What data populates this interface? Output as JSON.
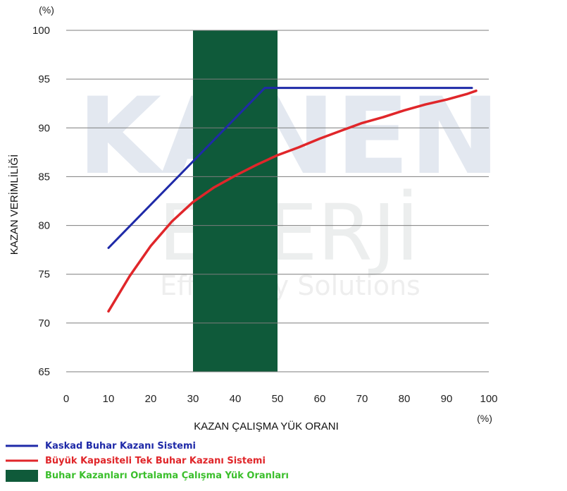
{
  "chart_data": {
    "type": "line",
    "y_unit": "(%)",
    "x_unit": "(%)",
    "ylabel": "KAZAN VERİMLİLİĞİ",
    "xlabel": "KAZAN ÇALIŞMA YÜK ORANI",
    "xlim": [
      0,
      100
    ],
    "ylim": [
      65,
      100
    ],
    "x_ticks": [
      "0",
      "10",
      "20",
      "30",
      "40",
      "50",
      "60",
      "70",
      "80",
      "90",
      "100"
    ],
    "y_ticks": [
      "100",
      "95",
      "90",
      "85",
      "80",
      "75",
      "70",
      "65"
    ],
    "grid": true,
    "highlight_band": {
      "name": "Buhar Kazanları Ortalama Çalışma Yük Oranları",
      "x_range": [
        30,
        50
      ],
      "color": "#0f5a3a"
    },
    "series": [
      {
        "name": "Kaskad Buhar Kazanı Sistemi",
        "color": "#1f2aa8",
        "x": [
          10,
          47,
          96
        ],
        "y": [
          77.7,
          94.1,
          94.1
        ]
      },
      {
        "name": "Büyük Kapasiteli Tek Buhar Kazanı Sistemi",
        "color": "#e0262a",
        "x": [
          10,
          15,
          20,
          25,
          30,
          35,
          40,
          45,
          50,
          55,
          60,
          65,
          70,
          75,
          80,
          85,
          90,
          95,
          97
        ],
        "y": [
          71.2,
          74.8,
          77.9,
          80.4,
          82.4,
          83.9,
          85.1,
          86.2,
          87.2,
          88.0,
          88.9,
          89.7,
          90.5,
          91.1,
          91.8,
          92.4,
          92.9,
          93.5,
          93.8
        ]
      }
    ]
  },
  "watermark": {
    "line1": "KANEN",
    "line2": "ENERJİ",
    "line3": "Efficiency Solutions"
  }
}
